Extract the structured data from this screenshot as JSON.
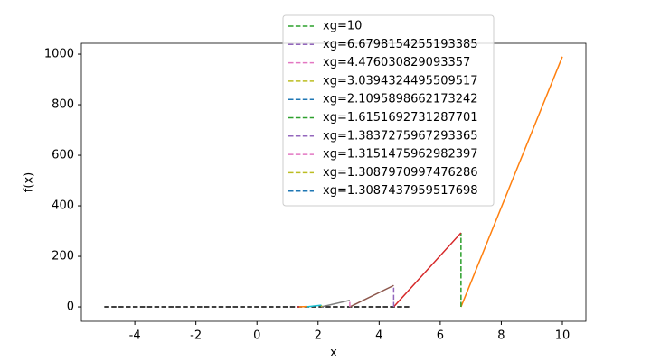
{
  "chart_data": {
    "type": "newton",
    "xlabel": "x",
    "ylabel": "f(x)",
    "xlim": [
      -5.75,
      10.77
    ],
    "ylim": [
      -57,
      1043
    ],
    "xticks": [
      -4,
      -2,
      0,
      2,
      4,
      6,
      8,
      10
    ],
    "yticks": [
      0,
      200,
      400,
      600,
      800,
      1000
    ],
    "legend": "upper center",
    "baseline": {
      "x": [
        -5,
        5
      ],
      "values": [
        0,
        0
      ],
      "color": "#000000"
    },
    "series": [
      {
        "name": "xg=10",
        "color": "#2ca02c",
        "line_color": "#ff7f0e",
        "x": [
          10,
          6.6798
        ],
        "values": [
          990,
          293
        ]
      },
      {
        "name": "xg=6.6798154255193385",
        "color": "#9467bd",
        "line_color": "#d62728",
        "x": [
          6.6798,
          4.476
        ],
        "values": [
          293,
          85
        ]
      },
      {
        "name": "xg=4.476030829093357",
        "color": "#e377c2",
        "line_color": "#8c564b",
        "x": [
          4.476,
          3.0394
        ],
        "values": [
          85,
          26
        ]
      },
      {
        "name": "xg=3.0394324495509517",
        "color": "#bcbd22",
        "line_color": "#7f7f7f",
        "x": [
          3.0394,
          2.1096
        ],
        "values": [
          26,
          7
        ]
      },
      {
        "name": "xg=2.1095898662173242",
        "color": "#1f77b4",
        "line_color": "#17becf",
        "x": [
          2.1096,
          1.6152
        ],
        "values": [
          7,
          1.5
        ]
      },
      {
        "name": "xg=1.6151692731287701",
        "color": "#2ca02c",
        "line_color": "#ff7f0e",
        "x": [
          1.6152,
          1.3837
        ],
        "values": [
          1.5,
          0.2
        ]
      },
      {
        "name": "xg=1.3837275967293365",
        "color": "#9467bd",
        "line_color": "#d62728",
        "x": [
          1.3837,
          1.3151
        ],
        "values": [
          0.2,
          0.02
        ]
      },
      {
        "name": "xg=1.3151475962982397",
        "color": "#e377c2",
        "line_color": "#8c564b",
        "x": [
          1.3151,
          1.3088
        ],
        "values": [
          0.02,
          0
        ]
      },
      {
        "name": "xg=1.3087970997476286",
        "color": "#bcbd22",
        "line_color": "#7f7f7f",
        "x": [
          1.3088,
          1.30874
        ],
        "values": [
          0,
          0
        ]
      },
      {
        "name": "xg=1.3087437959517698",
        "color": "#1f77b4",
        "line_color": "#17becf",
        "x": [
          1.30874,
          1.30874
        ],
        "values": [
          0,
          0
        ]
      }
    ]
  }
}
